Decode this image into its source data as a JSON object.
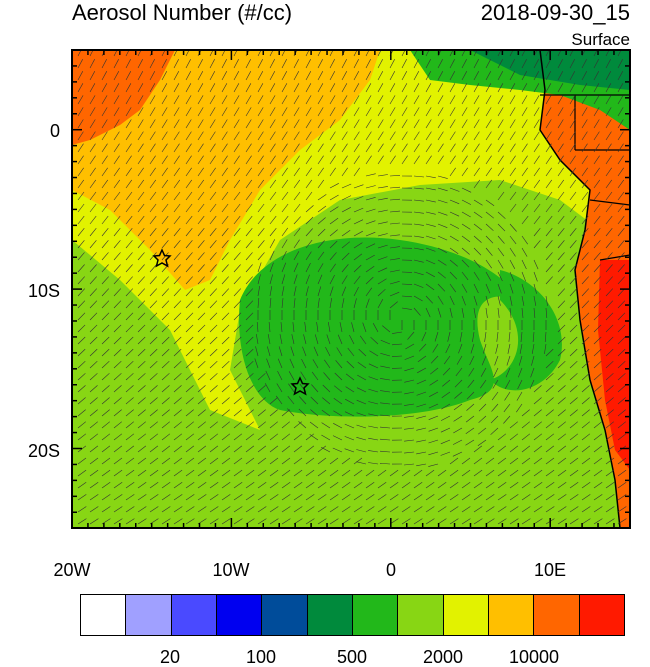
{
  "title": "Aerosol Number (#/cc)",
  "datetime": "2018-09-30_15",
  "level": "Surface",
  "lon_labels": [
    "20W",
    "10W",
    "0",
    "10E"
  ],
  "lat_labels": [
    "0",
    "10S",
    "20S"
  ],
  "colorbar": {
    "colors": [
      "#ffffff",
      "#a0a0ff",
      "#4a4aff",
      "#0000f0",
      "#004c9a",
      "#008a3c",
      "#22b81a",
      "#88d614",
      "#e2f200",
      "#ffbf00",
      "#ff6600",
      "#ff1a00"
    ],
    "labels": [
      "20",
      "100",
      "500",
      "2000",
      "10000"
    ]
  },
  "markers": [
    {
      "lon": "14.5W",
      "lat": "8S",
      "icon": "star-icon"
    },
    {
      "lon": "5.8W",
      "lat": "16S",
      "icon": "star-icon"
    }
  ],
  "colors": {
    "land_red": "#ff1a00",
    "land_orange": "#ff6600",
    "high_orange": "#ffbf00",
    "yellow": "#e2f200",
    "lightgreen": "#88d614",
    "green": "#22b81a",
    "darkgreen": "#008a3c"
  }
}
